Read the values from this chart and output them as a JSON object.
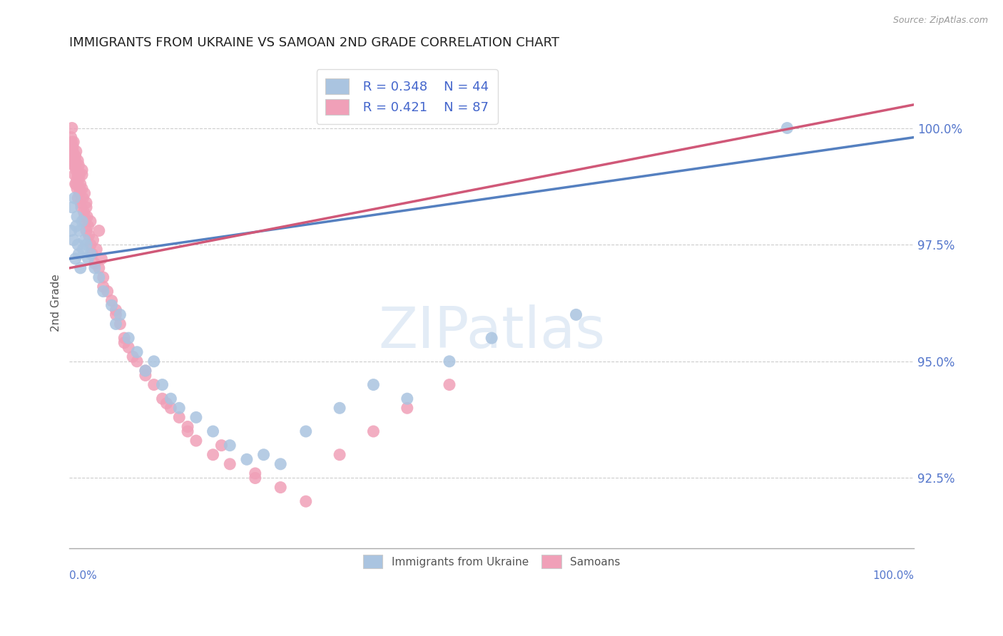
{
  "title": "IMMIGRANTS FROM UKRAINE VS SAMOAN 2ND GRADE CORRELATION CHART",
  "source": "Source: ZipAtlas.com",
  "ylabel": "2nd Grade",
  "ytick_values": [
    92.5,
    95.0,
    97.5,
    100.0
  ],
  "xlim": [
    0.0,
    100.0
  ],
  "ylim": [
    91.0,
    101.5
  ],
  "ukraine_R": 0.348,
  "ukraine_N": 44,
  "samoan_R": 0.421,
  "samoan_N": 87,
  "ukraine_color": "#aac4e0",
  "samoan_color": "#f0a0b8",
  "ukraine_line_color": "#5580c0",
  "samoan_line_color": "#d05878",
  "background_color": "#ffffff",
  "title_color": "#222222",
  "ukraine_scatter_x": [
    0.2,
    0.3,
    0.5,
    0.6,
    0.7,
    0.8,
    0.9,
    1.0,
    1.1,
    1.2,
    1.3,
    1.5,
    1.6,
    1.8,
    2.0,
    2.2,
    2.5,
    3.0,
    3.5,
    4.0,
    5.0,
    5.5,
    6.0,
    7.0,
    8.0,
    9.0,
    10.0,
    11.0,
    12.0,
    13.0,
    15.0,
    17.0,
    19.0,
    21.0,
    23.0,
    25.0,
    28.0,
    32.0,
    36.0,
    40.0,
    45.0,
    50.0,
    60.0,
    85.0
  ],
  "ukraine_scatter_y": [
    97.8,
    98.3,
    97.6,
    98.5,
    97.2,
    97.9,
    98.1,
    97.5,
    97.3,
    97.8,
    97.0,
    98.0,
    97.4,
    97.6,
    97.5,
    97.2,
    97.3,
    97.0,
    96.8,
    96.5,
    96.2,
    95.8,
    96.0,
    95.5,
    95.2,
    94.8,
    95.0,
    94.5,
    94.2,
    94.0,
    93.8,
    93.5,
    93.2,
    92.9,
    93.0,
    92.8,
    93.5,
    94.0,
    94.5,
    94.2,
    95.0,
    95.5,
    96.0,
    100.0
  ],
  "samoan_scatter_x": [
    0.1,
    0.2,
    0.3,
    0.3,
    0.4,
    0.5,
    0.5,
    0.6,
    0.7,
    0.7,
    0.8,
    0.8,
    0.9,
    1.0,
    1.0,
    1.0,
    1.1,
    1.1,
    1.2,
    1.2,
    1.3,
    1.3,
    1.4,
    1.5,
    1.5,
    1.6,
    1.7,
    1.8,
    1.8,
    2.0,
    2.0,
    2.1,
    2.2,
    2.3,
    2.5,
    2.5,
    2.7,
    3.0,
    3.2,
    3.5,
    4.0,
    4.5,
    5.0,
    5.5,
    6.0,
    6.5,
    7.0,
    8.0,
    9.0,
    10.0,
    11.0,
    12.0,
    13.0,
    14.0,
    15.0,
    17.0,
    19.0,
    22.0,
    25.0,
    28.0,
    32.0,
    36.0,
    40.0,
    45.0,
    18.0,
    3.5,
    1.5,
    0.8,
    0.5,
    0.3,
    0.4,
    2.0,
    1.2,
    0.9,
    4.0,
    2.8,
    0.6,
    6.5,
    3.8,
    22.0,
    14.0,
    7.5,
    0.7,
    1.8,
    9.0,
    11.5,
    5.5
  ],
  "samoan_scatter_y": [
    99.5,
    99.8,
    99.3,
    100.0,
    99.6,
    99.2,
    99.7,
    99.0,
    99.4,
    98.8,
    99.1,
    99.5,
    98.7,
    99.3,
    99.0,
    98.5,
    98.9,
    99.2,
    98.6,
    99.0,
    98.4,
    98.8,
    98.3,
    98.7,
    99.0,
    98.5,
    98.2,
    98.6,
    98.0,
    98.4,
    97.8,
    98.1,
    97.9,
    97.7,
    97.5,
    98.0,
    97.3,
    97.1,
    97.4,
    97.0,
    96.8,
    96.5,
    96.3,
    96.0,
    95.8,
    95.5,
    95.3,
    95.0,
    94.8,
    94.5,
    94.2,
    94.0,
    93.8,
    93.5,
    93.3,
    93.0,
    92.8,
    92.5,
    92.3,
    92.0,
    93.0,
    93.5,
    94.0,
    94.5,
    93.2,
    97.8,
    99.1,
    98.8,
    99.4,
    99.7,
    99.5,
    98.3,
    98.7,
    98.9,
    96.6,
    97.6,
    99.2,
    95.4,
    97.2,
    92.6,
    93.6,
    95.1,
    99.3,
    98.1,
    94.7,
    94.1,
    96.1
  ]
}
